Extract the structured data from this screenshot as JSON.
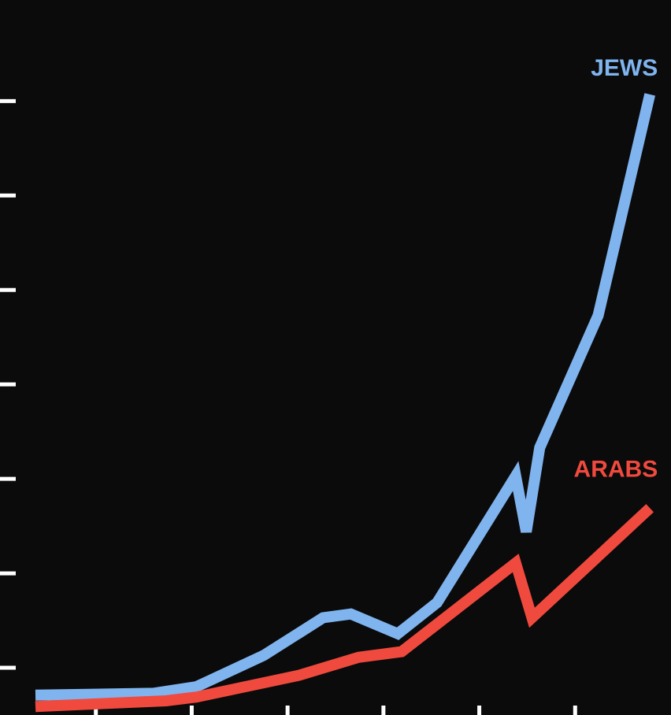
{
  "chart_data": {
    "type": "line",
    "xlim": [
      0,
      7
    ],
    "xticks": [
      1,
      2,
      3,
      4,
      5,
      6
    ],
    "ylim": [
      0,
      7.57
    ],
    "yticks": [
      0.5,
      1.5,
      2.5,
      3.5,
      4.5,
      5.5,
      6.5
    ],
    "background": "#0b0b0c",
    "series": [
      {
        "name": "JEWS",
        "color": "#80b4ee",
        "x": [
          0.37,
          1.6,
          2.05,
          2.75,
          3.37,
          3.66,
          4.15,
          4.56,
          5.38,
          5.49,
          5.63,
          6.24,
          6.78
        ],
        "values": [
          0.21,
          0.23,
          0.3,
          0.63,
          1.03,
          1.07,
          0.86,
          1.19,
          2.53,
          1.94,
          2.83,
          4.23,
          6.57
        ]
      },
      {
        "name": "ARABS",
        "color": "#f04a3e",
        "x": [
          0.37,
          1.73,
          2.05,
          3.12,
          3.74,
          4.19,
          5.38,
          5.55,
          6.78
        ],
        "values": [
          0.09,
          0.15,
          0.19,
          0.42,
          0.61,
          0.67,
          1.61,
          1.03,
          2.19
        ]
      }
    ]
  }
}
